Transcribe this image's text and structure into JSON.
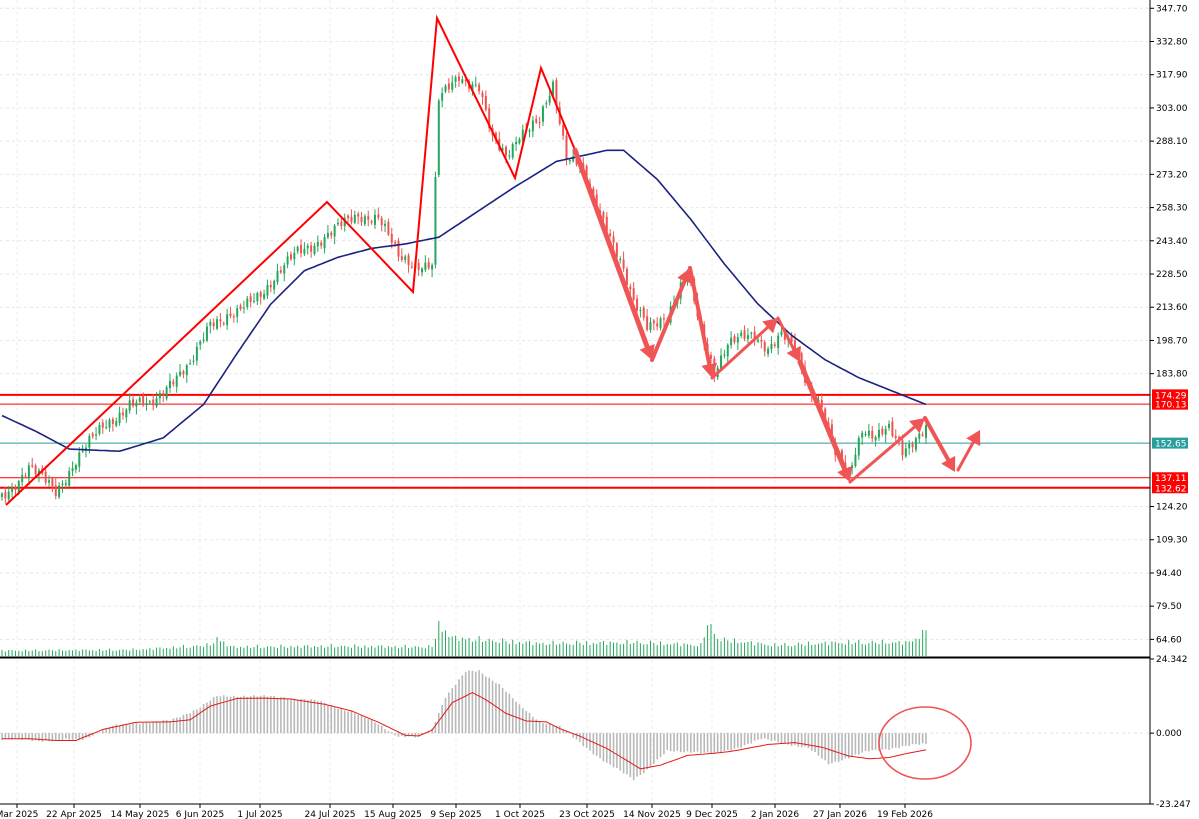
{
  "chart_data": {
    "type": "candlestick",
    "price_axis": {
      "ticks": [
        "347.70",
        "332.80",
        "317.90",
        "303.00",
        "288.10",
        "273.20",
        "258.30",
        "243.40",
        "228.50",
        "213.60",
        "198.70",
        "183.80",
        "124.20",
        "109.30",
        "94.40",
        "79.50",
        "64.60"
      ],
      "ylim": [
        57.15,
        351.42
      ]
    },
    "macd_axis": {
      "ticks": [
        "24.342",
        "0.000",
        "-23.247"
      ],
      "ylim": [
        -23.247,
        24.342
      ]
    },
    "x_tick_labels": [
      "Mar 2025",
      "22 Apr 2025",
      "14 May 2025",
      "6 Jun 2025",
      "1 Jul 2025",
      "24 Jul 2025",
      "15 Aug 2025",
      "9 Sep 2025",
      "1 Oct 2025",
      "23 Oct 2025",
      "14 Nov 2025",
      "9 Dec 2025",
      "2 Jan 2026",
      "27 Jan 2026",
      "19 Feb 2026"
    ],
    "horizontal_levels": [
      {
        "value": 174.29,
        "label": "174.29",
        "color": "#ff0000",
        "thick": true
      },
      {
        "value": 170.13,
        "label": "170.13",
        "color": "#ff0000",
        "thick": false
      },
      {
        "value": 152.65,
        "label": "152.65",
        "color": "#2a9d9d",
        "thick": false
      },
      {
        "value": 137.11,
        "label": "137.11",
        "color": "#ff0000",
        "thick": false
      },
      {
        "value": 132.62,
        "label": "132.62",
        "color": "#ff0000",
        "thick": true
      }
    ],
    "price_close_anchors": [
      [
        0,
        128
      ],
      [
        8,
        142
      ],
      [
        16,
        131
      ],
      [
        22,
        145
      ],
      [
        30,
        160
      ],
      [
        38,
        170
      ],
      [
        44,
        169
      ],
      [
        50,
        181
      ],
      [
        56,
        186
      ],
      [
        62,
        208
      ],
      [
        70,
        210
      ],
      [
        78,
        222
      ],
      [
        88,
        238
      ],
      [
        98,
        247
      ],
      [
        106,
        255
      ],
      [
        112,
        254
      ],
      [
        118,
        236
      ],
      [
        124,
        233
      ],
      [
        128,
        232
      ],
      [
        130,
        306
      ],
      [
        136,
        318
      ],
      [
        142,
        312
      ],
      [
        146,
        288
      ],
      [
        150,
        282
      ],
      [
        154,
        292
      ],
      [
        160,
        296
      ],
      [
        164,
        313
      ],
      [
        168,
        283
      ],
      [
        172,
        278
      ],
      [
        176,
        260
      ],
      [
        180,
        250
      ],
      [
        184,
        236
      ],
      [
        188,
        215
      ],
      [
        192,
        204
      ],
      [
        198,
        211
      ],
      [
        204,
        228
      ],
      [
        208,
        203
      ],
      [
        212,
        186
      ],
      [
        216,
        197
      ],
      [
        220,
        199
      ],
      [
        224,
        201
      ],
      [
        228,
        196
      ],
      [
        232,
        201
      ],
      [
        236,
        194
      ],
      [
        240,
        178
      ],
      [
        244,
        170
      ],
      [
        248,
        147
      ],
      [
        252,
        138
      ],
      [
        256,
        160
      ],
      [
        260,
        156
      ],
      [
        264,
        158
      ],
      [
        268,
        149
      ],
      [
        272,
        156
      ],
      [
        275,
        160
      ]
    ],
    "ma_anchors": [
      [
        0,
        165
      ],
      [
        10,
        158
      ],
      [
        20,
        150
      ],
      [
        35,
        149
      ],
      [
        48,
        155
      ],
      [
        60,
        170
      ],
      [
        70,
        193
      ],
      [
        80,
        215
      ],
      [
        90,
        230
      ],
      [
        100,
        236
      ],
      [
        110,
        240
      ],
      [
        120,
        242
      ],
      [
        130,
        245
      ],
      [
        140,
        255
      ],
      [
        152,
        267
      ],
      [
        165,
        279
      ],
      [
        180,
        284
      ],
      [
        185,
        284
      ],
      [
        195,
        271
      ],
      [
        205,
        253
      ],
      [
        215,
        233
      ],
      [
        225,
        215
      ],
      [
        235,
        201
      ],
      [
        245,
        190
      ],
      [
        255,
        182
      ],
      [
        265,
        176
      ],
      [
        275,
        170
      ]
    ],
    "macd_signal_anchors": [
      [
        0,
        -1.8
      ],
      [
        8,
        -1.8
      ],
      [
        16,
        -2.4
      ],
      [
        22,
        -2.4
      ],
      [
        30,
        1.2
      ],
      [
        40,
        3.6
      ],
      [
        50,
        3.7
      ],
      [
        56,
        4.4
      ],
      [
        62,
        8.9
      ],
      [
        70,
        11.4
      ],
      [
        78,
        11.5
      ],
      [
        86,
        11.2
      ],
      [
        96,
        9.5
      ],
      [
        104,
        7.3
      ],
      [
        112,
        3.6
      ],
      [
        120,
        -0.7
      ],
      [
        124,
        -0.9
      ],
      [
        128,
        1.0
      ],
      [
        134,
        10.0
      ],
      [
        140,
        13.3
      ],
      [
        144,
        11.0
      ],
      [
        150,
        6.5
      ],
      [
        156,
        4.0
      ],
      [
        162,
        3.7
      ],
      [
        166,
        1.5
      ],
      [
        172,
        -1.0
      ],
      [
        180,
        -5.0
      ],
      [
        186,
        -9.0
      ],
      [
        190,
        -11.7
      ],
      [
        196,
        -10.5
      ],
      [
        204,
        -7.3
      ],
      [
        212,
        -6.6
      ],
      [
        218,
        -5.8
      ],
      [
        228,
        -3.7
      ],
      [
        236,
        -3.1
      ],
      [
        244,
        -4.6
      ],
      [
        252,
        -7.5
      ],
      [
        258,
        -8.4
      ],
      [
        264,
        -8.0
      ],
      [
        270,
        -6.5
      ],
      [
        275,
        -5.5
      ]
    ],
    "macd_hist_anchors": [
      [
        0,
        -2.0
      ],
      [
        16,
        -2.5
      ],
      [
        24,
        -2.0
      ],
      [
        32,
        2.0
      ],
      [
        40,
        3.4
      ],
      [
        50,
        4.0
      ],
      [
        58,
        8.0
      ],
      [
        64,
        12.0
      ],
      [
        72,
        12.3
      ],
      [
        84,
        11.8
      ],
      [
        94,
        10.5
      ],
      [
        104,
        7.0
      ],
      [
        112,
        3.0
      ],
      [
        118,
        -1.0
      ],
      [
        124,
        -1.5
      ],
      [
        128,
        1.5
      ],
      [
        132,
        12.0
      ],
      [
        138,
        20.0
      ],
      [
        142,
        20.5
      ],
      [
        148,
        16.0
      ],
      [
        154,
        9.0
      ],
      [
        160,
        4.0
      ],
      [
        166,
        2.0
      ],
      [
        172,
        -3.0
      ],
      [
        180,
        -10.0
      ],
      [
        188,
        -15.0
      ],
      [
        192,
        -12.0
      ],
      [
        198,
        -6.0
      ],
      [
        206,
        -6.0
      ],
      [
        212,
        -7.0
      ],
      [
        218,
        -5.0
      ],
      [
        226,
        -2.0
      ],
      [
        232,
        -3.0
      ],
      [
        240,
        -5.0
      ],
      [
        246,
        -10.0
      ],
      [
        252,
        -8.0
      ],
      [
        258,
        -6.0
      ],
      [
        264,
        -5.0
      ],
      [
        275,
        -3.5
      ]
    ],
    "volume_anchors": [
      [
        0,
        6
      ],
      [
        40,
        7
      ],
      [
        62,
        12
      ],
      [
        64,
        20
      ],
      [
        68,
        10
      ],
      [
        100,
        11
      ],
      [
        128,
        10
      ],
      [
        130,
        35
      ],
      [
        134,
        20
      ],
      [
        160,
        14
      ],
      [
        190,
        15
      ],
      [
        208,
        12
      ],
      [
        210,
        35
      ],
      [
        214,
        18
      ],
      [
        230,
        12
      ],
      [
        250,
        15
      ],
      [
        270,
        15
      ],
      [
        274,
        25
      ],
      [
        276,
        40
      ]
    ]
  }
}
